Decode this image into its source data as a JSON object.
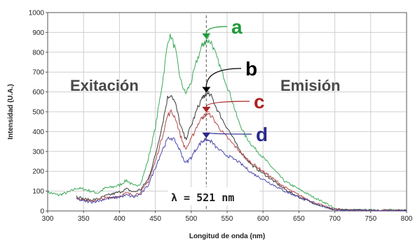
{
  "chart_data": {
    "type": "line",
    "title": "",
    "xlabel": "Longitud de onda (nm)",
    "ylabel": "Intensidad (U.A.)",
    "xlim": [
      300,
      800
    ],
    "ylim": [
      0,
      1000
    ],
    "xticks": [
      300,
      350,
      400,
      450,
      500,
      550,
      600,
      650,
      700,
      750,
      800
    ],
    "yticks": [
      0,
      100,
      200,
      300,
      400,
      500,
      600,
      700,
      800,
      900,
      1000
    ],
    "grid": true,
    "region_labels": {
      "excitation": "Exitación",
      "emission": "Emisión"
    },
    "marker_line": {
      "x": 521,
      "label": "λ = 521 nm"
    },
    "series": [
      {
        "name": "a",
        "color": "#3daa5a",
        "label_color": "#1e9a3a",
        "excitation": [
          [
            300,
            95
          ],
          [
            315,
            80
          ],
          [
            330,
            95
          ],
          [
            340,
            115
          ],
          [
            350,
            110
          ],
          [
            360,
            100
          ],
          [
            370,
            90
          ],
          [
            380,
            115
          ],
          [
            390,
            120
          ],
          [
            400,
            130
          ],
          [
            410,
            155
          ],
          [
            420,
            125
          ],
          [
            430,
            140
          ],
          [
            440,
            260
          ],
          [
            450,
            420
          ],
          [
            460,
            650
          ],
          [
            468,
            870
          ],
          [
            472,
            880
          ],
          [
            478,
            810
          ],
          [
            485,
            660
          ],
          [
            492,
            590
          ],
          [
            500,
            650
          ],
          [
            508,
            760
          ],
          [
            515,
            830
          ],
          [
            521,
            860
          ],
          [
            525,
            880
          ]
        ],
        "emission": [
          [
            515,
            830
          ],
          [
            521,
            860
          ],
          [
            528,
            850
          ],
          [
            535,
            780
          ],
          [
            545,
            680
          ],
          [
            555,
            580
          ],
          [
            565,
            460
          ],
          [
            575,
            380
          ],
          [
            585,
            330
          ],
          [
            600,
            270
          ],
          [
            615,
            210
          ],
          [
            630,
            150
          ],
          [
            650,
            110
          ],
          [
            670,
            70
          ],
          [
            690,
            35
          ],
          [
            700,
            10
          ],
          [
            720,
            5
          ],
          [
            760,
            5
          ],
          [
            800,
            5
          ]
        ]
      },
      {
        "name": "b",
        "color": "#3a3a3a",
        "label_color": "#000000",
        "excitation": [
          [
            340,
            75
          ],
          [
            350,
            60
          ],
          [
            360,
            55
          ],
          [
            370,
            60
          ],
          [
            380,
            75
          ],
          [
            390,
            85
          ],
          [
            400,
            95
          ],
          [
            410,
            110
          ],
          [
            420,
            95
          ],
          [
            430,
            110
          ],
          [
            440,
            160
          ],
          [
            450,
            280
          ],
          [
            460,
            440
          ],
          [
            467,
            570
          ],
          [
            472,
            590
          ],
          [
            478,
            540
          ],
          [
            485,
            430
          ],
          [
            492,
            360
          ],
          [
            500,
            430
          ],
          [
            508,
            510
          ],
          [
            515,
            570
          ],
          [
            521,
            590
          ],
          [
            525,
            600
          ]
        ],
        "emission": [
          [
            515,
            570
          ],
          [
            521,
            590
          ],
          [
            528,
            580
          ],
          [
            535,
            520
          ],
          [
            545,
            450
          ],
          [
            555,
            390
          ],
          [
            565,
            320
          ],
          [
            575,
            270
          ],
          [
            585,
            230
          ],
          [
            600,
            190
          ],
          [
            615,
            150
          ],
          [
            630,
            110
          ],
          [
            650,
            70
          ],
          [
            670,
            40
          ],
          [
            690,
            15
          ],
          [
            700,
            8
          ],
          [
            720,
            5
          ],
          [
            760,
            3
          ],
          [
            800,
            3
          ]
        ]
      },
      {
        "name": "c",
        "color": "#b34a4a",
        "label_color": "#aa2222",
        "excitation": [
          [
            340,
            70
          ],
          [
            350,
            55
          ],
          [
            360,
            50
          ],
          [
            370,
            55
          ],
          [
            380,
            65
          ],
          [
            390,
            70
          ],
          [
            400,
            75
          ],
          [
            410,
            90
          ],
          [
            420,
            80
          ],
          [
            430,
            95
          ],
          [
            440,
            150
          ],
          [
            450,
            250
          ],
          [
            460,
            380
          ],
          [
            467,
            480
          ],
          [
            472,
            500
          ],
          [
            478,
            470
          ],
          [
            485,
            380
          ],
          [
            492,
            310
          ],
          [
            500,
            360
          ],
          [
            508,
            430
          ],
          [
            515,
            470
          ],
          [
            521,
            490
          ],
          [
            525,
            500
          ]
        ],
        "emission": [
          [
            515,
            470
          ],
          [
            521,
            490
          ],
          [
            528,
            480
          ],
          [
            535,
            440
          ],
          [
            545,
            390
          ],
          [
            555,
            350
          ],
          [
            565,
            310
          ],
          [
            575,
            270
          ],
          [
            585,
            240
          ],
          [
            600,
            200
          ],
          [
            615,
            160
          ],
          [
            630,
            120
          ],
          [
            650,
            80
          ],
          [
            670,
            45
          ],
          [
            690,
            18
          ],
          [
            700,
            8
          ],
          [
            720,
            5
          ],
          [
            760,
            3
          ],
          [
            800,
            3
          ]
        ]
      },
      {
        "name": "d",
        "color": "#4a4aaa",
        "label_color": "#2a2a8a",
        "excitation": [
          [
            340,
            60
          ],
          [
            350,
            50
          ],
          [
            360,
            45
          ],
          [
            370,
            50
          ],
          [
            380,
            60
          ],
          [
            390,
            65
          ],
          [
            400,
            70
          ],
          [
            410,
            80
          ],
          [
            420,
            70
          ],
          [
            430,
            85
          ],
          [
            440,
            130
          ],
          [
            450,
            220
          ],
          [
            460,
            310
          ],
          [
            467,
            360
          ],
          [
            472,
            370
          ],
          [
            478,
            350
          ],
          [
            485,
            300
          ],
          [
            492,
            240
          ],
          [
            500,
            270
          ],
          [
            508,
            320
          ],
          [
            515,
            350
          ],
          [
            521,
            360
          ],
          [
            525,
            355
          ]
        ],
        "emission": [
          [
            515,
            350
          ],
          [
            521,
            360
          ],
          [
            528,
            350
          ],
          [
            535,
            320
          ],
          [
            545,
            290
          ],
          [
            555,
            270
          ],
          [
            565,
            250
          ],
          [
            575,
            220
          ],
          [
            585,
            190
          ],
          [
            600,
            160
          ],
          [
            615,
            130
          ],
          [
            630,
            100
          ],
          [
            650,
            70
          ],
          [
            670,
            40
          ],
          [
            690,
            15
          ],
          [
            700,
            5
          ],
          [
            720,
            3
          ],
          [
            760,
            2
          ],
          [
            800,
            2
          ]
        ]
      }
    ]
  }
}
